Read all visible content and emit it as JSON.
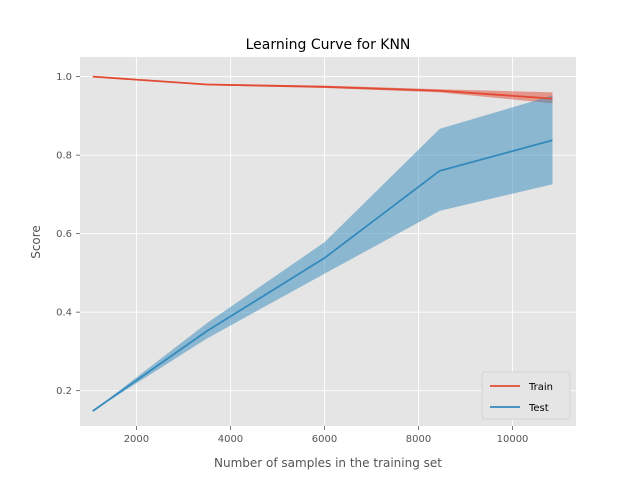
{
  "chart_data": {
    "type": "line",
    "title": "Learning Curve for KNN",
    "xlabel": "Number of samples in the training set",
    "ylabel": "Score",
    "xlim": [
      800,
      11350
    ],
    "ylim": [
      0.11,
      1.05
    ],
    "x_ticks": [
      2000,
      4000,
      6000,
      8000,
      10000
    ],
    "y_ticks": [
      0.2,
      0.4,
      0.6,
      0.8,
      1.0
    ],
    "x_tick_labels": [
      "2000",
      "4000",
      "6000",
      "8000",
      "10000"
    ],
    "y_tick_labels": [
      "0.2",
      "0.4",
      "0.6",
      "0.8",
      "1.0"
    ],
    "grid": true,
    "legend_position": "lower-right",
    "colors": {
      "background": "#e5e5e5",
      "grid": "#ffffff",
      "train": "#e24a33",
      "test": "#348abd"
    },
    "series": [
      {
        "name": "Train",
        "color": "#e24a33",
        "x": [
          1070,
          3500,
          6000,
          8450,
          10850
        ],
        "y": [
          1.0,
          0.98,
          0.974,
          0.964,
          0.944
        ],
        "lower": [
          1.0,
          0.978,
          0.971,
          0.96,
          0.932
        ],
        "upper": [
          1.0,
          0.982,
          0.977,
          0.968,
          0.96
        ]
      },
      {
        "name": "Test",
        "color": "#348abd",
        "x": [
          1070,
          3500,
          6000,
          8450,
          10850
        ],
        "y": [
          0.148,
          0.352,
          0.538,
          0.76,
          0.838
        ],
        "lower": [
          0.148,
          0.333,
          0.498,
          0.658,
          0.726
        ],
        "upper": [
          0.148,
          0.372,
          0.578,
          0.867,
          0.952
        ]
      }
    ]
  }
}
